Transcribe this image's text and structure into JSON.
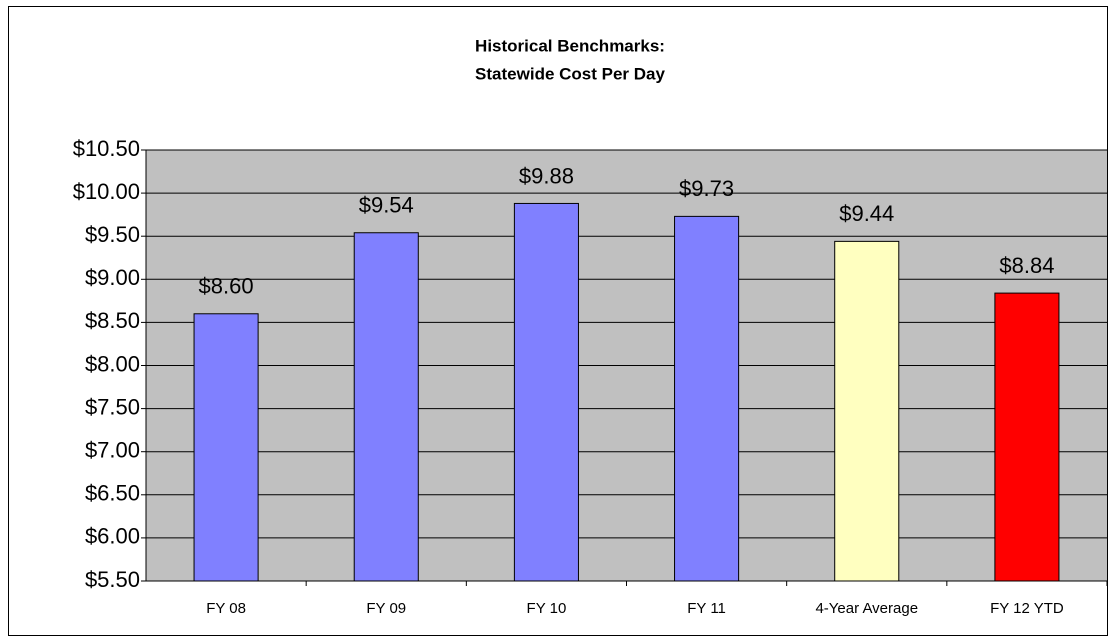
{
  "chart_data": {
    "type": "bar",
    "title": [
      "Historical Benchmarks:",
      "Statewide Cost Per Day"
    ],
    "categories": [
      "FY 08",
      "FY 09",
      "FY 10",
      "FY 11",
      "4-Year Average",
      "FY 12 YTD"
    ],
    "values": [
      8.6,
      9.54,
      9.88,
      9.73,
      9.44,
      8.84
    ],
    "value_labels": [
      "$8.60",
      "$9.54",
      "$9.88",
      "$9.73",
      "$9.44",
      "$8.84"
    ],
    "colors": [
      "#8080ff",
      "#8080ff",
      "#8080ff",
      "#8080ff",
      "#ffffc0",
      "#ff0000"
    ],
    "ylim": [
      5.5,
      10.5
    ],
    "yticks": [
      {
        "value": 5.5,
        "label": "$5.50"
      },
      {
        "value": 6.0,
        "label": "$6.00"
      },
      {
        "value": 6.5,
        "label": "$6.50"
      },
      {
        "value": 7.0,
        "label": "$7.00"
      },
      {
        "value": 7.5,
        "label": "$7.50"
      },
      {
        "value": 8.0,
        "label": "$8.00"
      },
      {
        "value": 8.5,
        "label": "$8.50"
      },
      {
        "value": 9.0,
        "label": "$9.00"
      },
      {
        "value": 9.5,
        "label": "$9.50"
      },
      {
        "value": 10.0,
        "label": "$10.00"
      },
      {
        "value": 10.5,
        "label": "$10.50"
      }
    ],
    "grid": true
  }
}
